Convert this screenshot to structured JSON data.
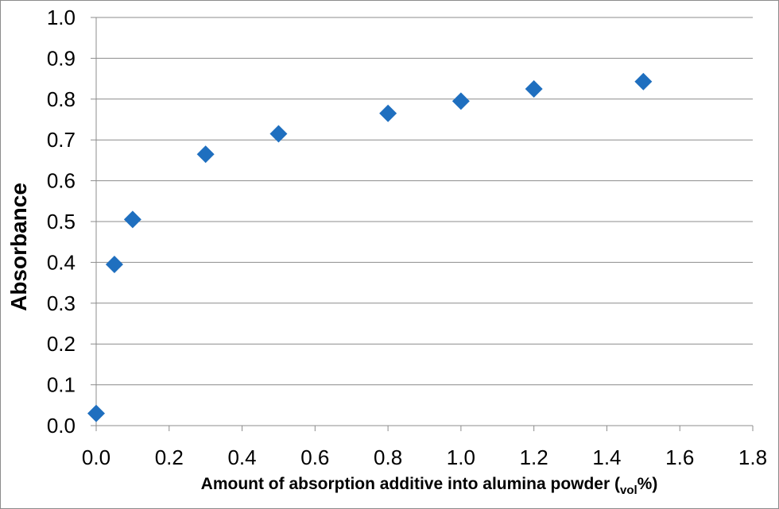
{
  "chart_data": {
    "type": "scatter",
    "title": "",
    "xlabel": "Amount of absorption additive into alumina powder (",
    "xlabel_sub": "vol",
    "xlabel_suffix": "%)",
    "ylabel": "Absorbance",
    "xlim": [
      0,
      1.8
    ],
    "ylim": [
      0,
      1.0
    ],
    "x_ticks": [
      "0.0",
      "0.2",
      "0.4",
      "0.6",
      "0.8",
      "1.0",
      "1.2",
      "1.4",
      "1.6",
      "1.8"
    ],
    "y_ticks": [
      "0.0",
      "0.1",
      "0.2",
      "0.3",
      "0.4",
      "0.5",
      "0.6",
      "0.7",
      "0.8",
      "0.9",
      "1.0"
    ],
    "grid": "horizontal",
    "marker": "diamond",
    "marker_color": "#1f6fbf",
    "series": [
      {
        "x": [
          0.0,
          0.05,
          0.1,
          0.3,
          0.5,
          0.8,
          1.0,
          1.2,
          1.5
        ],
        "y": [
          0.03,
          0.395,
          0.505,
          0.665,
          0.715,
          0.765,
          0.795,
          0.825,
          0.843
        ]
      }
    ]
  }
}
